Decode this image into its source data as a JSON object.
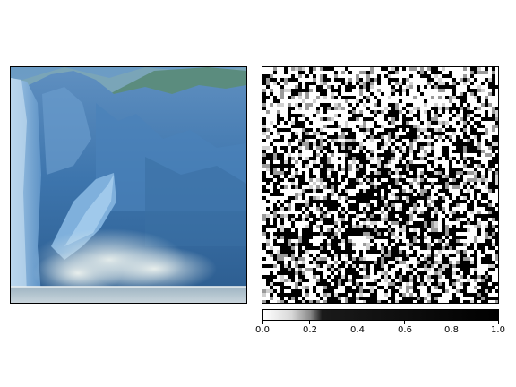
{
  "colorbar": {
    "colormap": "greys",
    "range": [
      0.0,
      1.0
    ],
    "ticks": [
      "0.0",
      "0.2",
      "0.4",
      "0.6",
      "0.8",
      "1.0"
    ]
  },
  "left_panel": {
    "content": "photo of a calving glacier in blue tones"
  },
  "right_panel": {
    "content": "black and white noisy attribution map"
  }
}
